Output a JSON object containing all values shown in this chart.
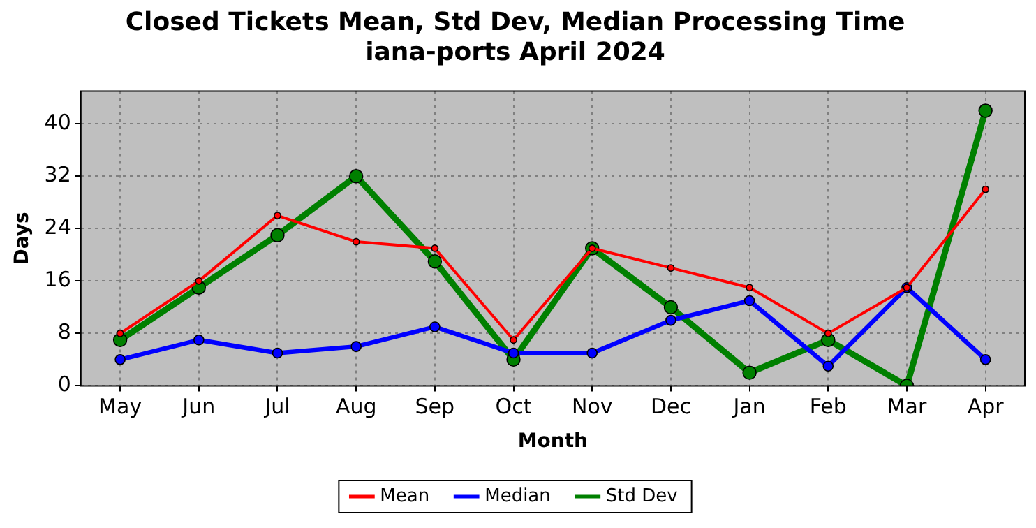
{
  "chart_data": {
    "type": "line",
    "title": "Closed Tickets Mean, Std Dev, Median Processing Time\niana-ports April 2024",
    "xlabel": "Month",
    "ylabel": "Days",
    "categories": [
      "May",
      "Jun",
      "Jul",
      "Aug",
      "Sep",
      "Oct",
      "Nov",
      "Dec",
      "Jan",
      "Feb",
      "Mar",
      "Apr"
    ],
    "series": [
      {
        "name": "Mean",
        "color": "#ff0000",
        "values": [
          8,
          16,
          26,
          22,
          21,
          7,
          21,
          18,
          15,
          8,
          15,
          30
        ]
      },
      {
        "name": "Median",
        "color": "#0000ff",
        "values": [
          4,
          7,
          5,
          6,
          9,
          5,
          5,
          10,
          13,
          3,
          15,
          4
        ]
      },
      {
        "name": "Std Dev",
        "color": "#008000",
        "values": [
          7,
          15,
          23,
          32,
          19,
          4,
          21,
          12,
          2,
          7,
          0,
          42
        ]
      }
    ],
    "ylim": [
      0,
      45
    ],
    "yticks": [
      0,
      8,
      16,
      24,
      32,
      40
    ],
    "grid": true,
    "legend": "bottom",
    "marker": "circle",
    "line_style": "solid"
  }
}
